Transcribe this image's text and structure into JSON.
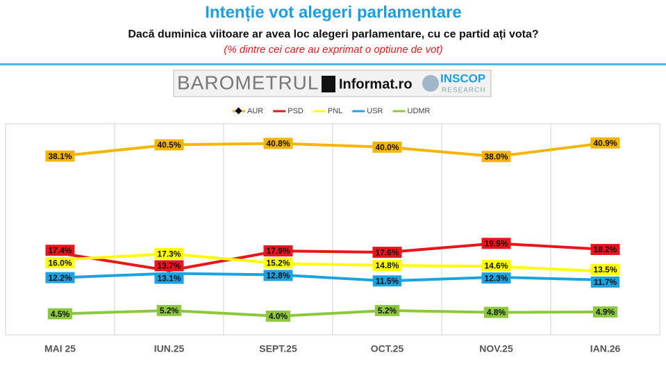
{
  "chart_data": {
    "type": "line",
    "title": "Intenție vot alegeri parlamentare",
    "subtitle": "Dacă duminica viitoare ar avea loc alegeri parlamentare, cu ce partid ați vota?",
    "note": "(% dintre cei care au exprimat o optiune de vot)",
    "logo": {
      "barometer": "BAROMETRUL",
      "partner": "Informat.ro",
      "brand": "INSCOP",
      "brand_sub": "RESEARCH"
    },
    "categories": [
      "MAI 25",
      "IUN.25",
      "SEPT.25",
      "OCT.25",
      "NOV.25",
      "IAN.26"
    ],
    "ylim": [
      0,
      45
    ],
    "series": [
      {
        "name": "AUR",
        "color": "#f5b400",
        "values": [
          38.1,
          40.5,
          40.8,
          40.0,
          38.0,
          40.9
        ],
        "value_labels": [
          "38.1%",
          "40.5%",
          "40.8%",
          "40.0%",
          "38.0%",
          "40.9%"
        ]
      },
      {
        "name": "PSD",
        "color": "#e8161b",
        "values": [
          17.4,
          13.7,
          17.9,
          17.6,
          19.5,
          18.2
        ],
        "value_labels": [
          "17.4%",
          "13.7%",
          "17.9%",
          "17.6%",
          "19.5%",
          "18.2%"
        ]
      },
      {
        "name": "PNL",
        "color": "#ffff00",
        "values": [
          16.0,
          17.3,
          15.2,
          14.8,
          14.6,
          13.5
        ],
        "value_labels": [
          "16.0%",
          "17.3%",
          "15.2%",
          "14.8%",
          "14.6%",
          "13.5%"
        ]
      },
      {
        "name": "USR",
        "color": "#1aa3e0",
        "values": [
          12.2,
          13.1,
          12.8,
          11.5,
          12.3,
          11.7
        ],
        "value_labels": [
          "12.2%",
          "13.1%",
          "12.8%",
          "11.5%",
          "12.3%",
          "11.7%"
        ]
      },
      {
        "name": "UDMR",
        "color": "#8cc83c",
        "values": [
          4.5,
          5.2,
          4.0,
          5.2,
          4.8,
          4.9
        ],
        "value_labels": [
          "4.5%",
          "5.2%",
          "4.0%",
          "5.2%",
          "4.8%",
          "4.9%"
        ]
      }
    ]
  }
}
